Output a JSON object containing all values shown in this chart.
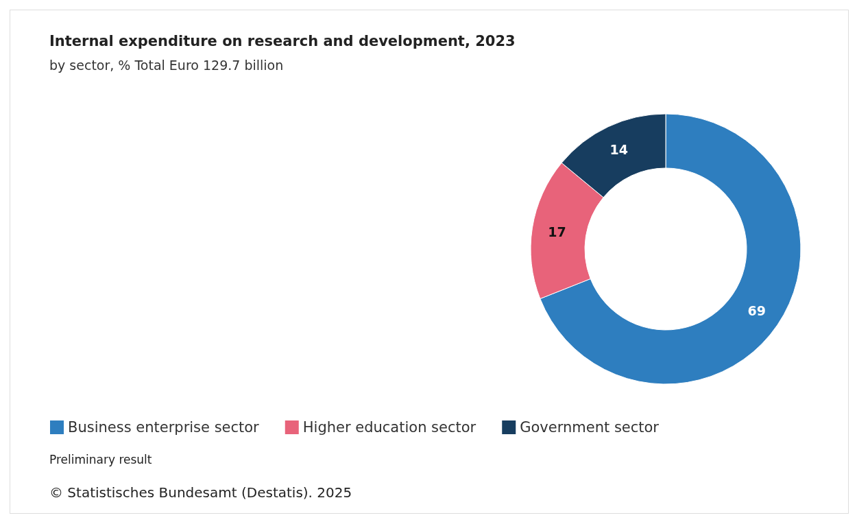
{
  "chart_data": {
    "type": "donut",
    "title": "Internal expenditure on research and development, 2023",
    "subtitle": "by sector, % Total Euro 129.7 billion",
    "categories": [
      "Business enterprise sector",
      "Higher education sector",
      "Government sector"
    ],
    "values": [
      69,
      17,
      14
    ],
    "colors": [
      "#2e7ebf",
      "#e8637a",
      "#173d5f"
    ],
    "data_labels": true,
    "legend": "bottom",
    "annotations": [
      "Preliminary result",
      "© Statistisches Bundesamt (Destatis). 2025"
    ]
  }
}
